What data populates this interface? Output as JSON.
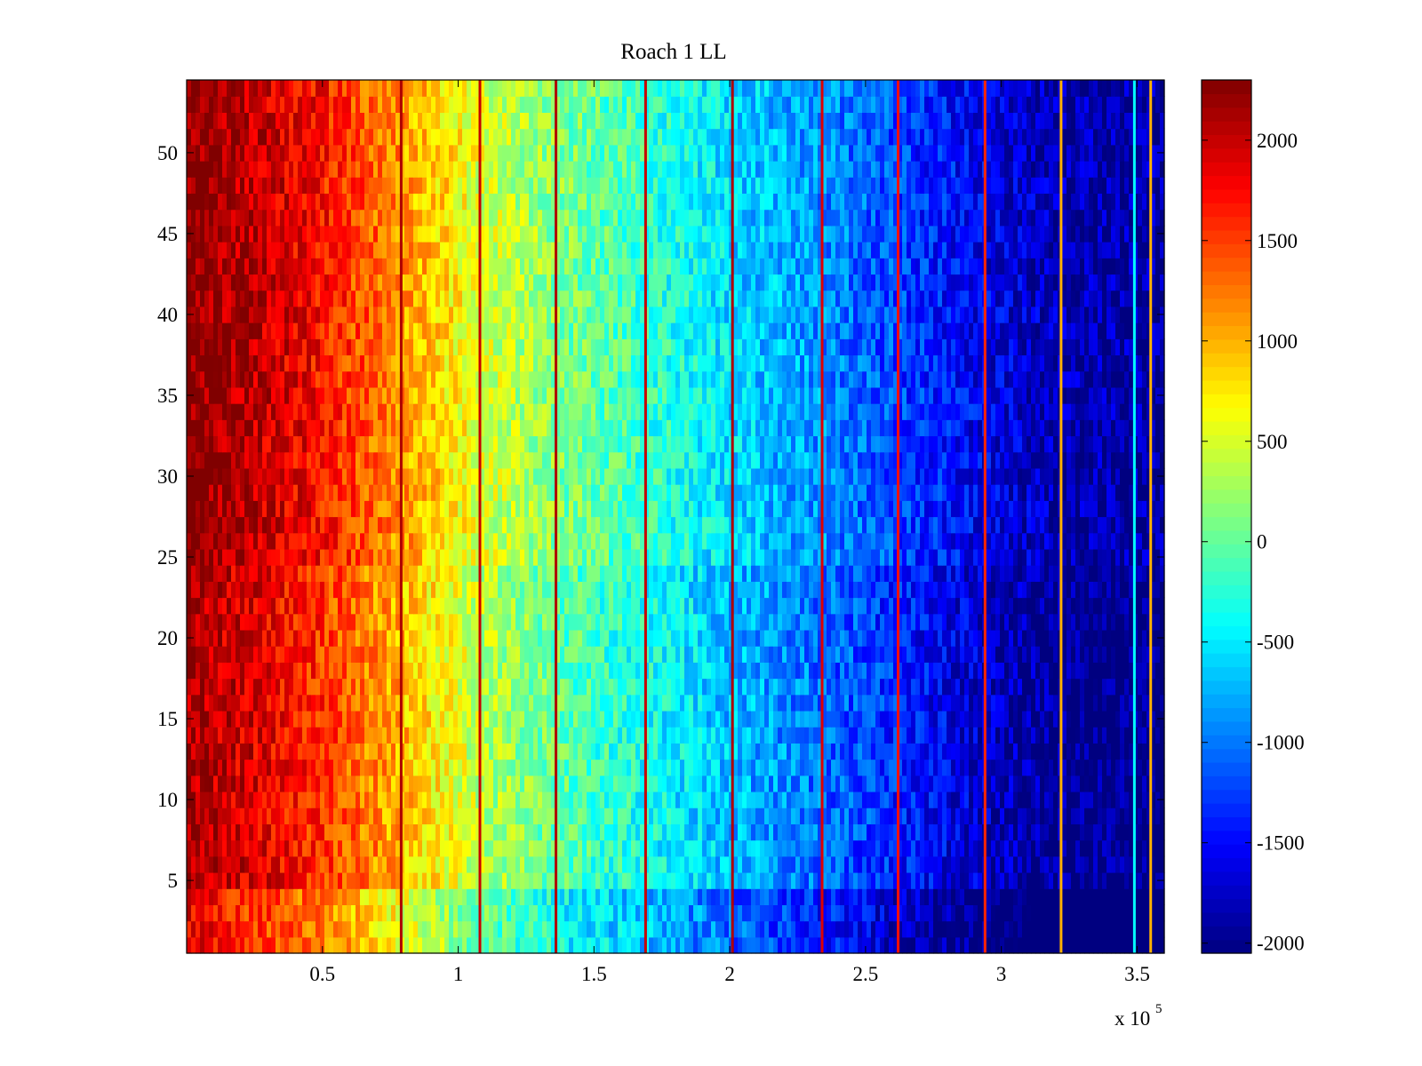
{
  "chart_data": {
    "type": "heatmap",
    "title": "Roach 1 LL",
    "xlabel": "",
    "ylabel": "",
    "x_multiplier_label": {
      "base": "x 10",
      "exponent": "5"
    },
    "xlim": [
      0,
      3.6
    ],
    "ylim": [
      0.5,
      54.5
    ],
    "x_ticks": [
      0.5,
      1,
      1.5,
      2,
      2.5,
      3,
      3.5
    ],
    "x_tick_labels": [
      "0.5",
      "1",
      "1.5",
      "2",
      "2.5",
      "3",
      "3.5"
    ],
    "y_ticks": [
      5,
      10,
      15,
      20,
      25,
      30,
      35,
      40,
      45,
      50
    ],
    "y_tick_labels": [
      "5",
      "10",
      "15",
      "20",
      "25",
      "30",
      "35",
      "40",
      "45",
      "50"
    ],
    "rows": 54,
    "colorbar": {
      "colormap": "jet",
      "clim": [
        -2050,
        2300
      ],
      "ticks": [
        -2000,
        -1500,
        -1000,
        -500,
        0,
        500,
        1000,
        1500,
        2000
      ],
      "tick_labels": [
        "-2000",
        "-1500",
        "-1000",
        "-500",
        "0",
        "500",
        "1000",
        "1500",
        "2000"
      ]
    },
    "gradient": {
      "description_values_along_x": [
        {
          "x": 0.0,
          "value": 2300
        },
        {
          "x": 0.25,
          "value": 2050
        },
        {
          "x": 0.5,
          "value": 1700
        },
        {
          "x": 0.8,
          "value": 1100
        },
        {
          "x": 1.1,
          "value": 500
        },
        {
          "x": 1.4,
          "value": 100
        },
        {
          "x": 1.7,
          "value": -200
        },
        {
          "x": 2.0,
          "value": -550
        },
        {
          "x": 2.35,
          "value": -900
        },
        {
          "x": 2.65,
          "value": -1250
        },
        {
          "x": 2.95,
          "value": -1600
        },
        {
          "x": 3.25,
          "value": -1850
        },
        {
          "x": 3.6,
          "value": -1900
        }
      ],
      "bottom_rows_offset": -500,
      "bottom_rows_count": 4
    },
    "stripes": [
      {
        "x": 0.79,
        "value": 2100
      },
      {
        "x": 1.08,
        "value": 2000
      },
      {
        "x": 1.36,
        "value": 2100
      },
      {
        "x": 1.69,
        "value": 2000
      },
      {
        "x": 2.01,
        "value": 2100
      },
      {
        "x": 2.34,
        "value": 1900
      },
      {
        "x": 2.62,
        "value": 1700
      },
      {
        "x": 2.94,
        "value": 1600
      },
      {
        "x": 3.22,
        "value": 1000
      },
      {
        "x": 3.49,
        "value": -400
      },
      {
        "x": 3.55,
        "value": 1000
      }
    ],
    "grid": false
  }
}
